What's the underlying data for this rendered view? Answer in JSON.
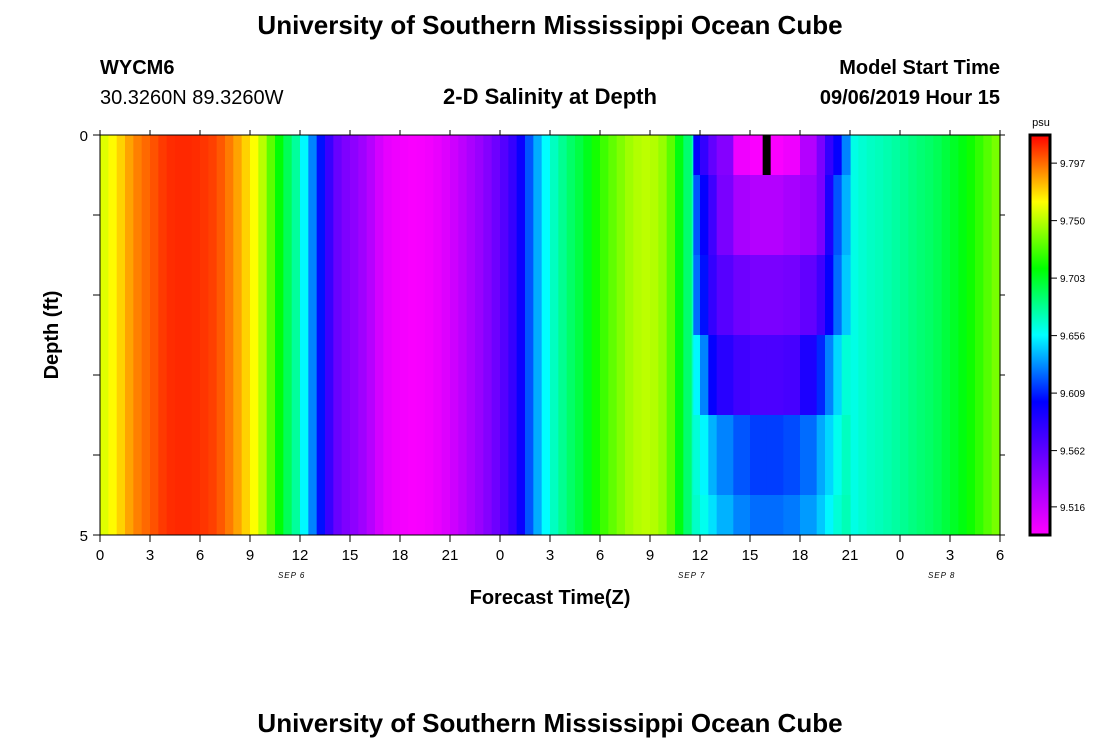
{
  "header": {
    "title_top": "University of Southern Mississippi Ocean Cube",
    "title_bottom": "University of Southern Mississippi Ocean Cube",
    "station_id": "WYCM6",
    "station_location": "30.3260N 89.3260W",
    "plot_title": "2-D Salinity at Depth",
    "model_start_label": "Model Start Time",
    "model_start_value": "09/06/2019 Hour 15"
  },
  "chart_data": {
    "type": "heatmap",
    "title": "2-D Salinity at Depth",
    "xlabel": "Forecast Time(Z)",
    "ylabel": "Depth (ft)",
    "x_range_hours": [
      0,
      54
    ],
    "y_range": [
      0,
      5
    ],
    "y_ticks": [
      0,
      1,
      2,
      3,
      4,
      5
    ],
    "y_tick_labels": [
      "0",
      "",
      "",
      "",
      "",
      "5"
    ],
    "x_ticks": [
      0,
      3,
      6,
      9,
      12,
      15,
      18,
      21,
      24,
      27,
      30,
      33,
      36,
      39,
      42,
      45,
      48,
      51,
      54
    ],
    "x_tick_labels": [
      "0",
      "3",
      "6",
      "9",
      "12",
      "15",
      "18",
      "21",
      "0",
      "3",
      "6",
      "9",
      "12",
      "15",
      "18",
      "21",
      "0",
      "3",
      "6"
    ],
    "date_labels": [
      {
        "hour": 11.5,
        "text": "SEP 6"
      },
      {
        "hour": 35.5,
        "text": "SEP 7"
      },
      {
        "hour": 50.5,
        "text": "SEP 8"
      }
    ],
    "colorbar": {
      "unit": "psu",
      "min": 9.493,
      "max": 9.82,
      "ticks": [
        9.516,
        9.562,
        9.609,
        9.656,
        9.703,
        9.75,
        9.797
      ],
      "tick_labels": [
        "9.516",
        "9.562",
        "9.609",
        "9.656",
        "9.703",
        "9.750",
        "9.797"
      ]
    },
    "current_time_hour": 40,
    "surface_profile": [
      [
        0,
        9.755
      ],
      [
        1,
        9.77
      ],
      [
        2,
        9.79
      ],
      [
        3,
        9.8
      ],
      [
        4,
        9.81
      ],
      [
        5,
        9.812
      ],
      [
        6,
        9.81
      ],
      [
        7,
        9.805
      ],
      [
        8,
        9.79
      ],
      [
        9,
        9.77
      ],
      [
        9.5,
        9.76
      ],
      [
        10,
        9.74
      ],
      [
        10.5,
        9.72
      ],
      [
        11,
        9.7
      ],
      [
        11.5,
        9.685
      ],
      [
        12,
        9.67
      ],
      [
        12.5,
        9.64
      ],
      [
        13,
        9.62
      ],
      [
        13.5,
        9.59
      ],
      [
        14,
        9.565
      ],
      [
        14.5,
        9.55
      ],
      [
        15,
        9.545
      ],
      [
        16,
        9.53
      ],
      [
        17,
        9.505
      ],
      [
        18,
        9.498
      ],
      [
        19,
        9.495
      ],
      [
        20,
        9.5
      ],
      [
        21,
        9.51
      ],
      [
        22,
        9.525
      ],
      [
        23,
        9.54
      ],
      [
        24,
        9.56
      ],
      [
        25,
        9.585
      ],
      [
        25.5,
        9.61
      ],
      [
        26,
        9.63
      ],
      [
        27,
        9.665
      ],
      [
        28,
        9.685
      ],
      [
        29,
        9.7
      ],
      [
        30,
        9.72
      ],
      [
        31,
        9.735
      ],
      [
        32,
        9.748
      ],
      [
        33,
        9.752
      ],
      [
        34,
        9.74
      ],
      [
        34.5,
        9.72
      ],
      [
        35,
        9.695
      ],
      [
        35.5,
        9.68
      ],
      [
        36,
        9.66
      ],
      [
        37,
        9.645
      ],
      [
        38,
        9.635
      ],
      [
        39,
        9.63
      ],
      [
        40,
        9.63
      ],
      [
        41,
        9.632
      ],
      [
        42,
        9.635
      ],
      [
        43,
        9.64
      ],
      [
        44,
        9.65
      ],
      [
        45,
        9.66
      ],
      [
        46,
        9.668
      ],
      [
        47,
        9.672
      ],
      [
        48,
        9.678
      ],
      [
        49,
        9.685
      ],
      [
        50,
        9.69
      ],
      [
        51,
        9.7
      ],
      [
        52,
        9.71
      ],
      [
        53,
        9.725
      ],
      [
        54,
        9.74
      ]
    ],
    "anomaly": {
      "x": [
        35.6,
        36,
        36.5,
        37,
        38,
        39,
        40,
        41,
        42,
        43,
        43.5,
        44,
        44.5,
        45
      ],
      "layers": [
        {
          "depth": [
            0,
            0.5
          ],
          "values": [
            9.6,
            9.58,
            9.56,
            9.545,
            9.5,
            9.495,
            9.495,
            9.5,
            9.525,
            9.55,
            9.58,
            9.6,
            9.63,
            9.65
          ]
        },
        {
          "depth": [
            0.5,
            1.5
          ],
          "values": [
            9.62,
            9.6,
            9.575,
            9.55,
            9.53,
            9.525,
            9.525,
            9.53,
            9.535,
            9.55,
            9.59,
            9.62,
            9.64,
            9.655
          ]
        },
        {
          "depth": [
            1.5,
            2.5
          ],
          "values": [
            9.625,
            9.605,
            9.58,
            9.565,
            9.555,
            9.55,
            9.55,
            9.552,
            9.56,
            9.575,
            9.6,
            9.625,
            9.645,
            9.66
          ]
        },
        {
          "depth": [
            2.5,
            3.5
          ],
          "values": [
            9.655,
            9.63,
            9.6,
            9.585,
            9.575,
            9.57,
            9.57,
            9.572,
            9.59,
            9.61,
            9.63,
            9.648,
            9.665,
            9.672
          ]
        },
        {
          "depth": [
            3.5,
            4.5
          ],
          "values": [
            9.665,
            9.655,
            9.64,
            9.63,
            9.62,
            9.615,
            9.615,
            9.618,
            9.625,
            9.638,
            9.648,
            9.66,
            9.67,
            9.676
          ]
        },
        {
          "depth": [
            4.5,
            5
          ],
          "values": [
            9.668,
            9.66,
            9.65,
            9.64,
            9.63,
            9.625,
            9.625,
            9.628,
            9.635,
            9.645,
            9.655,
            9.665,
            9.672,
            9.678
          ]
        }
      ]
    }
  }
}
